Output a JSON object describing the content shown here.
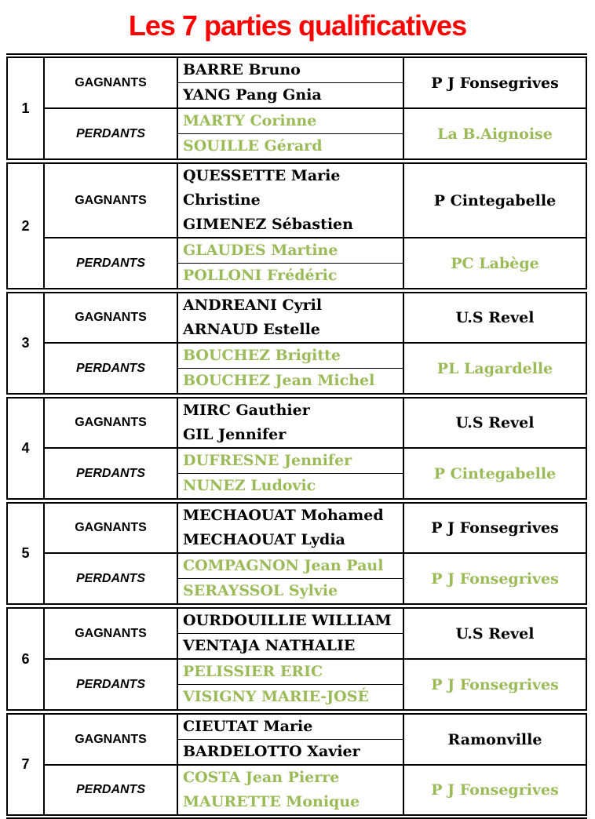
{
  "title": "Les 7 parties qualificatives",
  "colors": {
    "title_red": "#FF0000",
    "loser_green": "#9BBB59",
    "text_black": "#000000",
    "border_black": "#000000"
  },
  "labels": {
    "winners": "GAGNANTS",
    "losers": "PERDANTS"
  },
  "sections": [
    {
      "num": "1",
      "winners": {
        "players": [
          "BARRE Bruno",
          "YANG Pang Gnia"
        ],
        "club": "P J Fonsegrives"
      },
      "losers": {
        "players": [
          "MARTY Corinne",
          "SOUILLE Gérard"
        ],
        "club": "La B.Aignoise"
      }
    },
    {
      "num": "2",
      "winners": {
        "players": [
          "QUESSETTE Marie Christine",
          "GIMENEZ Sébastien"
        ],
        "club": "P Cintegabelle"
      },
      "losers": {
        "players": [
          "GLAUDES Martine",
          "POLLONI Frédéric"
        ],
        "club": "PC Labège"
      }
    },
    {
      "num": "3",
      "winners": {
        "players": [
          "ANDREANI Cyril",
          "ARNAUD Estelle"
        ],
        "club": "U.S Revel"
      },
      "losers": {
        "players": [
          "BOUCHEZ Brigitte",
          "BOUCHEZ Jean Michel"
        ],
        "club": "PL Lagardelle"
      }
    },
    {
      "num": "4",
      "winners": {
        "players": [
          "MIRC Gauthier",
          "GIL Jennifer"
        ],
        "club": "U.S Revel"
      },
      "losers": {
        "players": [
          "DUFRESNE Jennifer",
          "NUNEZ Ludovic"
        ],
        "club": "P Cintegabelle"
      }
    },
    {
      "num": "5",
      "winners": {
        "players": [
          "MECHAOUAT Mohamed",
          "MECHAOUAT Lydia"
        ],
        "club": "P J Fonsegrives"
      },
      "losers": {
        "players": [
          "COMPAGNON Jean Paul",
          "SERAYSSOL Sylvie"
        ],
        "club": "P J Fonsegrives"
      }
    },
    {
      "num": "6",
      "winners": {
        "players": [
          "OURDOUILLIE WILLIAM",
          "VENTAJA NATHALIE"
        ],
        "club": "U.S Revel"
      },
      "losers": {
        "players": [
          "PELISSIER ERIC",
          "VISIGNY MARIE-JOSÉ"
        ],
        "club": "P J Fonsegrives"
      }
    },
    {
      "num": "7",
      "winners": {
        "players": [
          "CIEUTAT Marie",
          "BARDELOTTO Xavier"
        ],
        "club": "Ramonville"
      },
      "losers": {
        "players": [
          "COSTA Jean Pierre",
          "MAURETTE Monique"
        ],
        "club": "P J Fonsegrives"
      }
    }
  ]
}
